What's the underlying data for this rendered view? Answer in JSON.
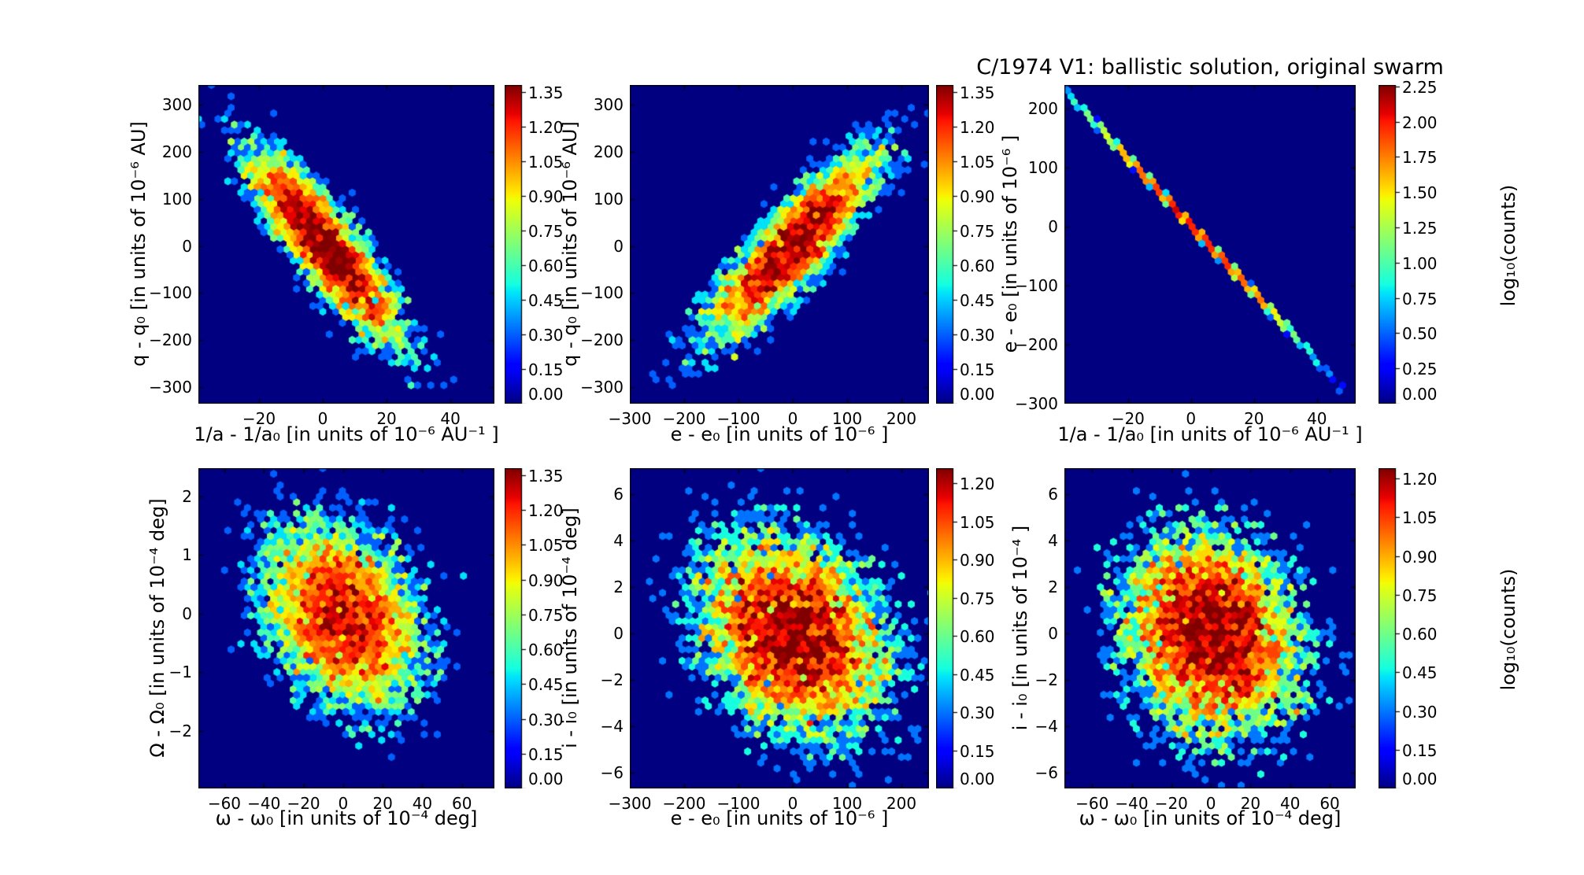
{
  "chart_data": {
    "type": "hexbin",
    "title": "C/1974 V1:  ballistic solution, original swarm",
    "colormap": "jet",
    "panel_background": "#000080",
    "colorbar_scale_label": "log₁₀(counts)",
    "panels": [
      {
        "name": "q-q0 vs 1/a-1/a0",
        "xlabel": "1/a - 1/a₀ [in units of 10⁻⁶ AU⁻¹ ]",
        "ylabel": "q - q₀ [in units of 10⁻⁶ AU]",
        "x_ticks": [
          -20,
          0,
          20,
          40
        ],
        "y_ticks": [
          300,
          200,
          100,
          0,
          -100,
          -200,
          -300
        ],
        "x_range": [
          -39,
          53.8
        ],
        "y_range": [
          -335,
          342
        ],
        "distribution": {
          "kind": "gaussian",
          "center": [
            1,
            0
          ],
          "sigma": [
            13,
            110
          ],
          "rho": -0.87,
          "n_points": 5000
        },
        "colorbar": {
          "vmax": 1.38,
          "ticks": [
            1.35,
            1.2,
            1.05,
            0.9,
            0.75,
            0.6,
            0.45,
            0.3,
            0.15,
            0.0
          ]
        }
      },
      {
        "name": "q-q0 vs e-e0",
        "xlabel": "e - e₀ [in units of 10⁻⁶ ]",
        "ylabel": "q - q₀ [in units of 10⁻⁶ AU]",
        "x_ticks": [
          -300,
          -200,
          -100,
          0,
          100,
          200
        ],
        "y_ticks": [
          300,
          200,
          100,
          0,
          -100,
          -200,
          -300
        ],
        "x_range": [
          -300,
          250.7
        ],
        "y_range": [
          -335,
          342
        ],
        "distribution": {
          "kind": "gaussian",
          "center": [
            0,
            0
          ],
          "sigma": [
            90,
            112
          ],
          "rho": 0.87,
          "n_points": 5000
        },
        "colorbar": {
          "vmax": 1.38,
          "ticks": [
            1.35,
            1.2,
            1.05,
            0.9,
            0.75,
            0.6,
            0.45,
            0.3,
            0.15,
            0.0
          ]
        }
      },
      {
        "name": "e-e0 vs 1/a-1/a0",
        "xlabel": "1/a - 1/a₀ [in units of 10⁻⁶ AU⁻¹ ]",
        "ylabel": "e - e₀ [in units of 10⁻⁶ ]",
        "x_ticks": [
          -20,
          0,
          20,
          40
        ],
        "y_ticks": [
          200,
          100,
          0,
          -100,
          -200,
          -300
        ],
        "x_range": [
          -40.2,
          52.3
        ],
        "y_range": [
          -300,
          240
        ],
        "distribution": {
          "kind": "line",
          "x_center": 1,
          "sigma_x": 16.5,
          "intercept": 2,
          "slope": -5.72,
          "jitter_y": 3,
          "n_points": 3000,
          "outliers": [
            [
              38,
              -215
            ],
            [
              47.5,
              -280
            ]
          ]
        },
        "colorbar": {
          "vmax": 2.26,
          "ticks": [
            2.25,
            2.0,
            1.75,
            1.5,
            1.25,
            1.0,
            0.75,
            0.5,
            0.25,
            0.0
          ],
          "label": "log₁₀(counts)"
        }
      },
      {
        "name": "Omega-Omega0 vs omega-omega0",
        "xlabel": "ω - ω₀ [in units of 10⁻⁴ deg]",
        "ylabel": "Ω - Ω₀ [in units of 10⁻⁴ deg]",
        "x_ticks": [
          -60,
          -40,
          -20,
          0,
          20,
          40,
          60
        ],
        "y_ticks": [
          2,
          1,
          0,
          -1,
          -2
        ],
        "x_range": [
          -73.1,
          76.4
        ],
        "y_range": [
          -2.98,
          2.48
        ],
        "distribution": {
          "kind": "gaussian",
          "center": [
            0,
            -0.05
          ],
          "sigma": [
            22,
            0.85
          ],
          "rho": -0.3,
          "n_points": 7000
        },
        "colorbar": {
          "vmax": 1.38,
          "ticks": [
            1.35,
            1.2,
            1.05,
            0.9,
            0.75,
            0.6,
            0.45,
            0.3,
            0.15,
            0.0
          ]
        }
      },
      {
        "name": "i-i0 vs e-e0",
        "xlabel": "e - e₀ [in units of 10⁻⁶ ]",
        "ylabel": "i - i₀ [in units of 10⁻⁴ deg]",
        "x_ticks": [
          -300,
          -200,
          -100,
          0,
          100,
          200
        ],
        "y_ticks": [
          6,
          4,
          2,
          0,
          -2,
          -4,
          -6
        ],
        "x_range": [
          -300,
          250.7
        ],
        "y_range": [
          -6.68,
          7.12
        ],
        "distribution": {
          "kind": "gaussian",
          "center": [
            0,
            0
          ],
          "sigma": [
            95,
            2.35
          ],
          "rho": -0.25,
          "n_points": 8500
        },
        "colorbar": {
          "vmax": 1.26,
          "ticks": [
            1.2,
            1.05,
            0.9,
            0.75,
            0.6,
            0.45,
            0.3,
            0.15,
            0.0
          ]
        }
      },
      {
        "name": "i-i0 vs omega-omega0",
        "xlabel": "ω - ω₀ [in units of 10⁻⁴ deg]",
        "ylabel": "i - i₀ [in units of 10⁻⁴ ]",
        "x_ticks": [
          -60,
          -40,
          -20,
          0,
          20,
          40,
          60
        ],
        "y_ticks": [
          6,
          4,
          2,
          0,
          -2,
          -4,
          -6
        ],
        "x_range": [
          -74,
          73.1
        ],
        "y_range": [
          -6.68,
          7.12
        ],
        "distribution": {
          "kind": "gaussian",
          "center": [
            0,
            0
          ],
          "sigma": [
            24,
            2.35
          ],
          "rho": -0.15,
          "n_points": 8200
        },
        "colorbar": {
          "vmax": 1.24,
          "ticks": [
            1.2,
            1.05,
            0.9,
            0.75,
            0.6,
            0.45,
            0.3,
            0.15,
            0.0
          ],
          "label": "log₁₀(counts)"
        }
      }
    ]
  }
}
